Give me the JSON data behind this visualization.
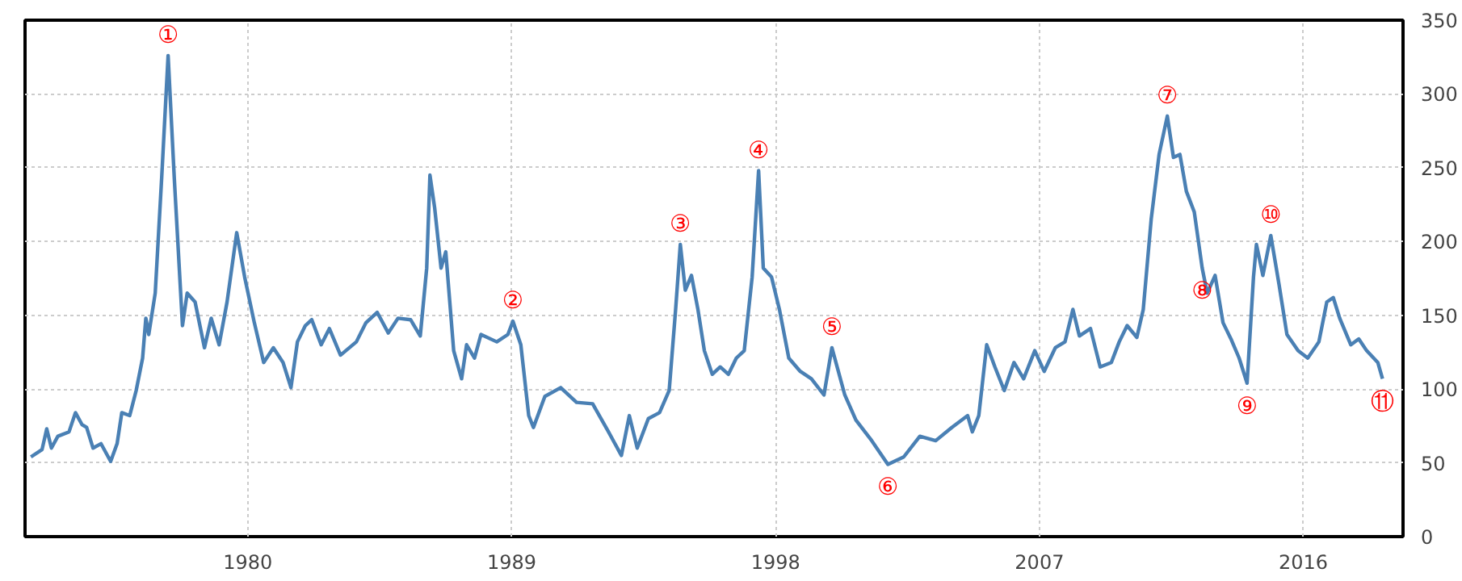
{
  "chart_data": {
    "type": "line",
    "x": [
      1972.6,
      1972.98,
      1973.14,
      1973.3,
      1973.52,
      1973.9,
      1974.12,
      1974.34,
      1974.5,
      1974.72,
      1974.99,
      1975.32,
      1975.54,
      1975.7,
      1975.97,
      1976.19,
      1976.41,
      1976.52,
      1976.62,
      1976.84,
      1977.06,
      1977.28,
      1977.49,
      1977.77,
      1977.93,
      1978.2,
      1978.52,
      1978.75,
      1979.02,
      1979.29,
      1979.62,
      1979.89,
      1980.22,
      1980.54,
      1980.87,
      1981.2,
      1981.47,
      1981.69,
      1981.96,
      1982.18,
      1982.5,
      1982.78,
      1983.16,
      1983.7,
      1984.03,
      1984.41,
      1984.79,
      1985.12,
      1985.55,
      1985.88,
      1986.1,
      1986.21,
      1986.37,
      1986.59,
      1986.75,
      1987.02,
      1987.29,
      1987.46,
      1987.73,
      1987.95,
      1988.49,
      1988.87,
      1989.04,
      1989.31,
      1989.58,
      1989.74,
      1990.13,
      1990.67,
      1991.21,
      1991.76,
      1992.3,
      1992.74,
      1993.01,
      1993.28,
      1993.66,
      1994.04,
      1994.37,
      1994.59,
      1994.75,
      1994.92,
      1995.13,
      1995.35,
      1995.57,
      1995.84,
      1996.11,
      1996.39,
      1996.66,
      1996.93,
      1997.2,
      1997.42,
      1997.58,
      1997.86,
      1998.13,
      1998.45,
      1998.84,
      1999.22,
      1999.65,
      1999.92,
      2000.36,
      2000.74,
      2001.28,
      2001.83,
      2002.37,
      2002.92,
      2003.46,
      2004.01,
      2004.55,
      2004.71,
      2004.93,
      2005.2,
      2005.48,
      2005.8,
      2006.13,
      2006.46,
      2006.84,
      2007.16,
      2007.54,
      2007.87,
      2008.14,
      2008.36,
      2008.74,
      2009.07,
      2009.45,
      2009.72,
      2009.99,
      2010.32,
      2010.54,
      2010.81,
      2011.08,
      2011.36,
      2011.57,
      2011.79,
      2012.01,
      2012.28,
      2012.55,
      2012.72,
      2012.99,
      2013.26,
      2013.53,
      2013.81,
      2014.08,
      2014.3,
      2014.4,
      2014.62,
      2014.89,
      2015.17,
      2015.44,
      2015.82,
      2016.15,
      2016.53,
      2016.8,
      2017.02,
      2017.24,
      2017.62,
      2017.89,
      2018.16,
      2018.54,
      2018.7
    ],
    "series": [
      {
        "color": "#4a80b4",
        "values": [
          54,
          59,
          73,
          60,
          68,
          71,
          84,
          76,
          74,
          60,
          63,
          51,
          63,
          84,
          82,
          99,
          121,
          148,
          137,
          165,
          243,
          326,
          243,
          143,
          165,
          159,
          128,
          148,
          130,
          159,
          206,
          176,
          145,
          118,
          128,
          118,
          101,
          132,
          143,
          147,
          130,
          141,
          123,
          132,
          145,
          152,
          138,
          148,
          147,
          136,
          182,
          245,
          223,
          182,
          193,
          126,
          107,
          130,
          121,
          137,
          132,
          137,
          146,
          130,
          82,
          74,
          95,
          101,
          91,
          90,
          71,
          55,
          82,
          60,
          80,
          84,
          99,
          154,
          198,
          167,
          177,
          154,
          126,
          110,
          115,
          110,
          121,
          126,
          176,
          248,
          182,
          176,
          154,
          121,
          112,
          107,
          96,
          128,
          96,
          79,
          65,
          49,
          54,
          68,
          65,
          74,
          82,
          71,
          82,
          130,
          115,
          99,
          118,
          107,
          126,
          112,
          128,
          132,
          154,
          136,
          141,
          115,
          118,
          132,
          143,
          135,
          154,
          215,
          259,
          285,
          257,
          259,
          234,
          220,
          182,
          165,
          177,
          145,
          134,
          121,
          104,
          176,
          198,
          177,
          204,
          171,
          137,
          126,
          121,
          132,
          159,
          162,
          148,
          130,
          134,
          126,
          118,
          107
        ]
      }
    ],
    "annotations": [
      {
        "text": "①",
        "x": 1977.28,
        "y": 326
      },
      {
        "text": "②",
        "x": 1989.04,
        "y": 146
      },
      {
        "text": "③",
        "x": 1994.75,
        "y": 198
      },
      {
        "text": "④",
        "x": 1997.42,
        "y": 248
      },
      {
        "text": "⑤",
        "x": 1999.92,
        "y": 128
      },
      {
        "text": "⑥",
        "x": 2001.83,
        "y": 49
      },
      {
        "text": "⑦",
        "x": 2011.36,
        "y": 285
      },
      {
        "text": "⑧",
        "x": 2012.55,
        "y": 182
      },
      {
        "text": "⑨",
        "x": 2014.08,
        "y": 104
      },
      {
        "text": "⑩",
        "x": 2014.89,
        "y": 204
      },
      {
        "text": "⑪",
        "x": 2018.7,
        "y": 107
      }
    ],
    "xlim": [
      1972.4,
      2019.4
    ],
    "ylim": [
      0,
      350
    ],
    "xticks": [
      1980,
      1989,
      1998,
      2007,
      2016
    ],
    "yticks": [
      0,
      50,
      100,
      150,
      200,
      250,
      300,
      350
    ],
    "grid": true
  }
}
